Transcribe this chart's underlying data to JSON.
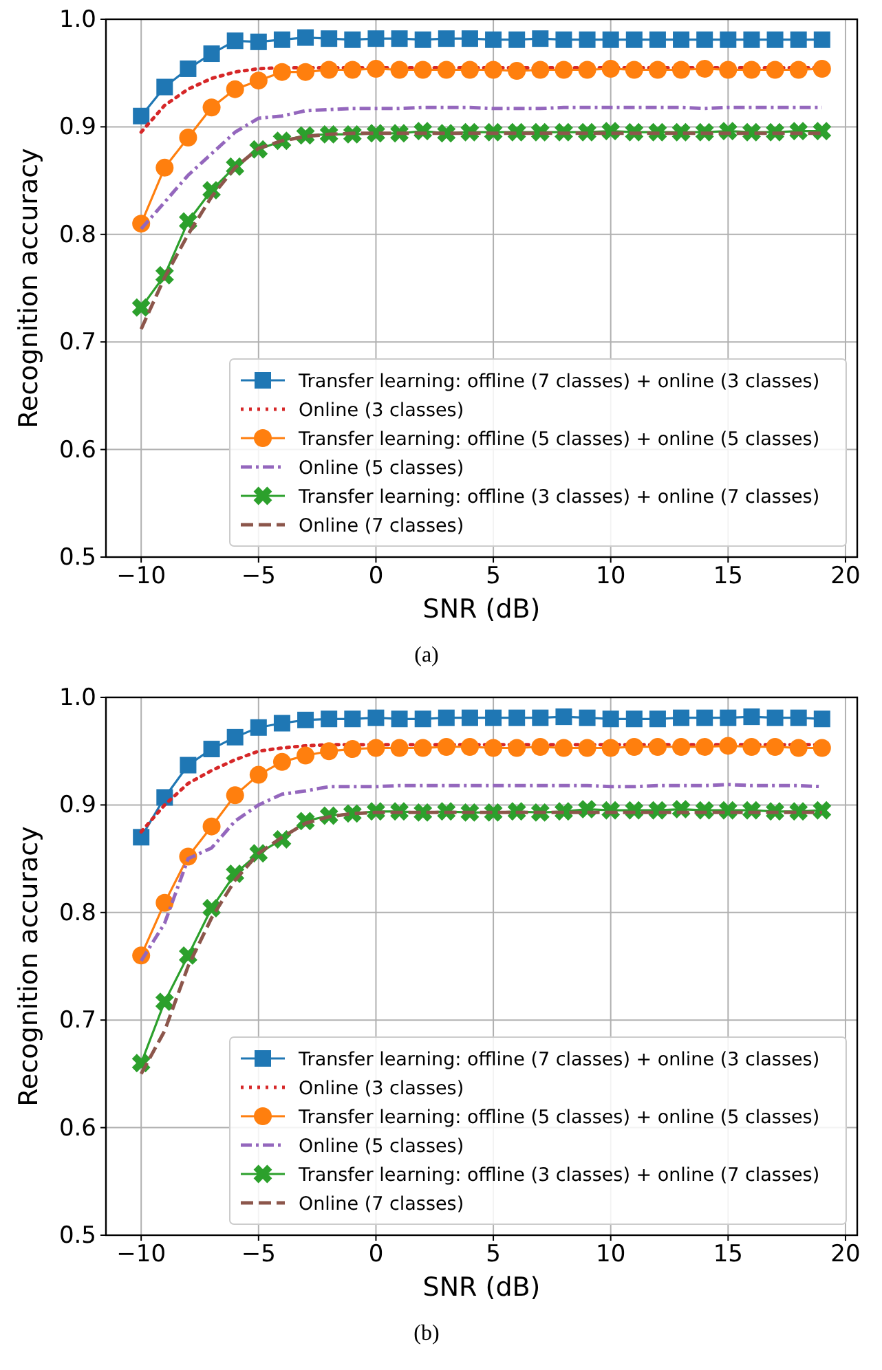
{
  "chart_data": [
    {
      "type": "line",
      "xlabel": "SNR (dB)",
      "ylabel": "Recognition accuracy",
      "annotations": [
        "(a)"
      ],
      "x": [
        -10,
        -9,
        -8,
        -7,
        -6,
        -5,
        -4,
        -3,
        -2,
        -1,
        0,
        1,
        2,
        3,
        4,
        5,
        6,
        7,
        8,
        9,
        10,
        11,
        12,
        13,
        14,
        15,
        16,
        17,
        18,
        19
      ],
      "xlim": [
        -11.5,
        20.5
      ],
      "xticks": [
        -10,
        -5,
        0,
        5,
        10,
        15,
        20
      ],
      "ylim": [
        0.5,
        1.0
      ],
      "yticks": [
        0.5,
        0.6,
        0.7,
        0.8,
        0.9,
        {
          "value": 1.0,
          "label": "1.0"
        }
      ],
      "grid": true,
      "legend": "bottom right",
      "series": [
        {
          "name": "Transfer learning: offline (7 classes) + online (3 classes)",
          "color": "#1f77b4",
          "marker": "square",
          "line_style": "solid",
          "values": [
            0.91,
            0.937,
            0.954,
            0.968,
            0.98,
            0.979,
            0.981,
            0.983,
            0.982,
            0.981,
            0.982,
            0.982,
            0.981,
            0.982,
            0.982,
            0.981,
            0.981,
            0.982,
            0.981,
            0.981,
            0.981,
            0.981,
            0.981,
            0.981,
            0.981,
            0.981,
            0.981,
            0.981,
            0.981,
            0.981
          ]
        },
        {
          "name": "Online (3 classes)",
          "color": "#d62728",
          "marker": "none",
          "line_style": "dotted",
          "values": [
            0.895,
            0.92,
            0.935,
            0.945,
            0.951,
            0.954,
            0.955,
            0.955,
            0.955,
            0.955,
            0.955,
            0.955,
            0.955,
            0.955,
            0.955,
            0.955,
            0.955,
            0.955,
            0.955,
            0.955,
            0.955,
            0.955,
            0.955,
            0.955,
            0.955,
            0.955,
            0.955,
            0.955,
            0.955,
            0.955
          ]
        },
        {
          "name": "Transfer learning: offline (5 classes) + online (5 classes)",
          "color": "#ff7f0e",
          "marker": "circle",
          "line_style": "solid",
          "values": [
            0.81,
            0.862,
            0.89,
            0.918,
            0.935,
            0.943,
            0.951,
            0.951,
            0.953,
            0.953,
            0.954,
            0.953,
            0.953,
            0.953,
            0.953,
            0.953,
            0.952,
            0.953,
            0.953,
            0.953,
            0.954,
            0.953,
            0.953,
            0.953,
            0.954,
            0.953,
            0.953,
            0.953,
            0.953,
            0.954
          ]
        },
        {
          "name": "Online (5 classes)",
          "color": "#9467bd",
          "marker": "none",
          "line_style": "dashdot",
          "values": [
            0.805,
            0.83,
            0.855,
            0.875,
            0.895,
            0.908,
            0.91,
            0.915,
            0.916,
            0.917,
            0.917,
            0.917,
            0.918,
            0.918,
            0.918,
            0.917,
            0.917,
            0.917,
            0.918,
            0.918,
            0.918,
            0.918,
            0.918,
            0.918,
            0.917,
            0.918,
            0.918,
            0.918,
            0.918,
            0.918
          ]
        },
        {
          "name": "Transfer learning: offline (3 classes) + online (7 classes)",
          "color": "#2ca02c",
          "marker": "cross",
          "line_style": "solid",
          "values": [
            0.732,
            0.762,
            0.812,
            0.841,
            0.863,
            0.879,
            0.887,
            0.892,
            0.893,
            0.893,
            0.894,
            0.894,
            0.896,
            0.894,
            0.895,
            0.895,
            0.895,
            0.895,
            0.895,
            0.895,
            0.896,
            0.895,
            0.895,
            0.895,
            0.895,
            0.896,
            0.895,
            0.895,
            0.896,
            0.896
          ]
        },
        {
          "name": "Online (7 classes)",
          "color": "#8c564b",
          "marker": "none",
          "line_style": "dashed",
          "values": [
            0.712,
            0.76,
            0.8,
            0.835,
            0.862,
            0.88,
            0.887,
            0.891,
            0.893,
            0.894,
            0.894,
            0.894,
            0.894,
            0.894,
            0.894,
            0.894,
            0.894,
            0.894,
            0.894,
            0.894,
            0.894,
            0.894,
            0.894,
            0.894,
            0.894,
            0.894,
            0.894,
            0.894,
            0.894,
            0.894
          ]
        }
      ]
    },
    {
      "type": "line",
      "xlabel": "SNR (dB)",
      "ylabel": "Recognition accuracy",
      "annotations": [
        "(b)"
      ],
      "x": [
        -10,
        -9,
        -8,
        -7,
        -6,
        -5,
        -4,
        -3,
        -2,
        -1,
        0,
        1,
        2,
        3,
        4,
        5,
        6,
        7,
        8,
        9,
        10,
        11,
        12,
        13,
        14,
        15,
        16,
        17,
        18,
        19
      ],
      "xlim": [
        -11.5,
        20.5
      ],
      "xticks": [
        -10,
        -5,
        0,
        5,
        10,
        15,
        20
      ],
      "ylim": [
        0.5,
        1.0
      ],
      "yticks": [
        0.5,
        0.6,
        0.7,
        0.8,
        0.9,
        {
          "value": 1.0,
          "label": "1.0"
        }
      ],
      "grid": true,
      "legend": "bottom right",
      "series": [
        {
          "name": "Transfer learning: offline (7 classes) + online (3 classes)",
          "color": "#1f77b4",
          "marker": "square",
          "line_style": "solid",
          "values": [
            0.87,
            0.907,
            0.937,
            0.952,
            0.963,
            0.972,
            0.976,
            0.979,
            0.98,
            0.98,
            0.981,
            0.98,
            0.98,
            0.981,
            0.981,
            0.981,
            0.981,
            0.981,
            0.982,
            0.981,
            0.98,
            0.98,
            0.98,
            0.981,
            0.981,
            0.981,
            0.982,
            0.981,
            0.981,
            0.98
          ]
        },
        {
          "name": "Online (3 classes)",
          "color": "#d62728",
          "marker": "none",
          "line_style": "dotted",
          "values": [
            0.875,
            0.9,
            0.92,
            0.932,
            0.942,
            0.95,
            0.953,
            0.955,
            0.956,
            0.956,
            0.956,
            0.956,
            0.956,
            0.956,
            0.956,
            0.956,
            0.956,
            0.956,
            0.956,
            0.956,
            0.956,
            0.956,
            0.956,
            0.956,
            0.956,
            0.956,
            0.956,
            0.956,
            0.956,
            0.956
          ]
        },
        {
          "name": "Transfer learning: offline (5 classes) + online (5 classes)",
          "color": "#ff7f0e",
          "marker": "circle",
          "line_style": "solid",
          "values": [
            0.76,
            0.809,
            0.852,
            0.88,
            0.909,
            0.928,
            0.94,
            0.946,
            0.95,
            0.952,
            0.953,
            0.953,
            0.953,
            0.954,
            0.954,
            0.953,
            0.953,
            0.954,
            0.953,
            0.953,
            0.953,
            0.954,
            0.954,
            0.954,
            0.954,
            0.955,
            0.954,
            0.954,
            0.953,
            0.953
          ]
        },
        {
          "name": "Online (5 classes)",
          "color": "#9467bd",
          "marker": "none",
          "line_style": "dashdot",
          "values": [
            0.755,
            0.79,
            0.85,
            0.86,
            0.885,
            0.9,
            0.91,
            0.913,
            0.917,
            0.917,
            0.917,
            0.918,
            0.918,
            0.918,
            0.918,
            0.918,
            0.918,
            0.918,
            0.918,
            0.918,
            0.917,
            0.917,
            0.918,
            0.918,
            0.918,
            0.919,
            0.918,
            0.918,
            0.918,
            0.917
          ]
        },
        {
          "name": "Transfer learning: offline (3 classes) + online (7 classes)",
          "color": "#2ca02c",
          "marker": "cross",
          "line_style": "solid",
          "values": [
            0.66,
            0.717,
            0.76,
            0.804,
            0.836,
            0.855,
            0.868,
            0.885,
            0.89,
            0.892,
            0.894,
            0.894,
            0.893,
            0.894,
            0.893,
            0.893,
            0.894,
            0.893,
            0.894,
            0.896,
            0.895,
            0.895,
            0.895,
            0.896,
            0.895,
            0.895,
            0.895,
            0.894,
            0.894,
            0.895
          ]
        },
        {
          "name": "Online (7 classes)",
          "color": "#8c564b",
          "marker": "none",
          "line_style": "dashed",
          "values": [
            0.65,
            0.69,
            0.75,
            0.795,
            0.83,
            0.855,
            0.87,
            0.883,
            0.889,
            0.892,
            0.893,
            0.893,
            0.893,
            0.893,
            0.893,
            0.893,
            0.893,
            0.893,
            0.893,
            0.893,
            0.893,
            0.893,
            0.893,
            0.893,
            0.893,
            0.893,
            0.893,
            0.893,
            0.893,
            0.893
          ]
        }
      ]
    }
  ]
}
